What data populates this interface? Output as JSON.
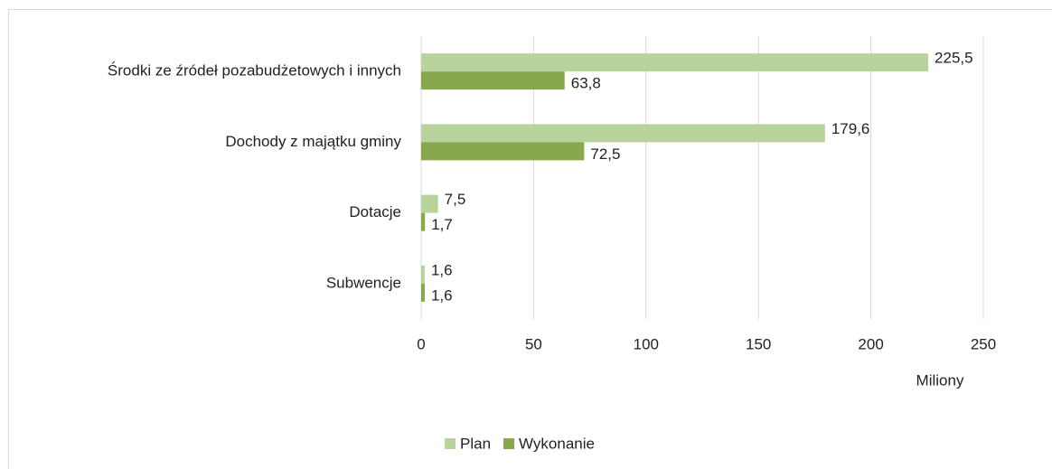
{
  "chart_data": {
    "type": "hbar",
    "categories": [
      "Środki ze źródeł pozabudżetowych i innych",
      "Dochody z majątku gminy",
      "Dotacje",
      "Subwencje"
    ],
    "series": [
      {
        "name": "Plan",
        "color": "#b9d39c",
        "values": [
          225.5,
          179.6,
          7.5,
          1.6
        ],
        "value_labels": [
          "225,5",
          "179,6",
          "7,5",
          "1,6"
        ]
      },
      {
        "name": "Wykonanie",
        "color": "#87a94b",
        "values": [
          63.8,
          72.5,
          1.7,
          1.6
        ],
        "value_labels": [
          "63,8",
          "72,5",
          "1,7",
          "1,6"
        ]
      }
    ],
    "xlabel": "Miliony",
    "xlim": [
      0,
      250
    ],
    "xticks": [
      0,
      50,
      100,
      150,
      200,
      250
    ],
    "grid": true,
    "legend": "bottom"
  }
}
